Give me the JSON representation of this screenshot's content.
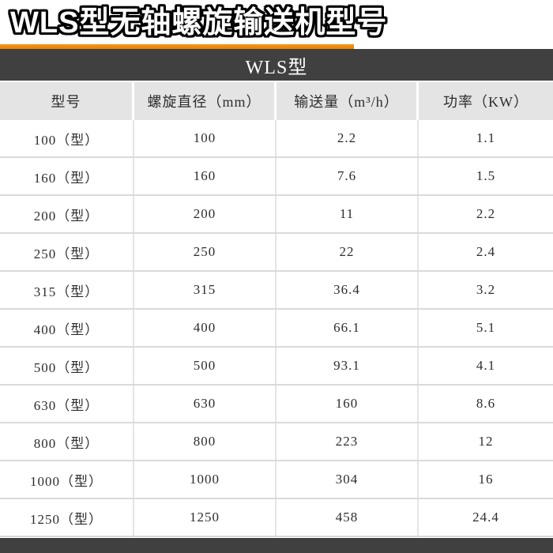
{
  "page": {
    "title": "WLS型无轴螺旋输送机型号",
    "banner_label": "WLS型"
  },
  "table": {
    "columns": [
      "型号",
      "螺旋直径（mm）",
      "输送量（m³/h）",
      "功率（KW）"
    ],
    "rows": [
      [
        "100（型）",
        "100",
        "2.2",
        "1.1"
      ],
      [
        "160（型）",
        "160",
        "7.6",
        "1.5"
      ],
      [
        "200（型）",
        "200",
        "11",
        "2.2"
      ],
      [
        "250（型）",
        "250",
        "22",
        "2.4"
      ],
      [
        "315（型）",
        "315",
        "36.4",
        "3.2"
      ],
      [
        "400（型）",
        "400",
        "66.1",
        "5.1"
      ],
      [
        "500（型）",
        "500",
        "93.1",
        "4.1"
      ],
      [
        "630（型）",
        "630",
        "160",
        "8.6"
      ],
      [
        "800（型）",
        "800",
        "223",
        "12"
      ],
      [
        "1000（型）",
        "1000",
        "304",
        "16"
      ],
      [
        "1250（型）",
        "1250",
        "458",
        "24.4"
      ]
    ]
  },
  "colors": {
    "accent_orange": "#ef8200",
    "bar_dark": "#404040",
    "header_row_bg": "#e4e4e4"
  }
}
